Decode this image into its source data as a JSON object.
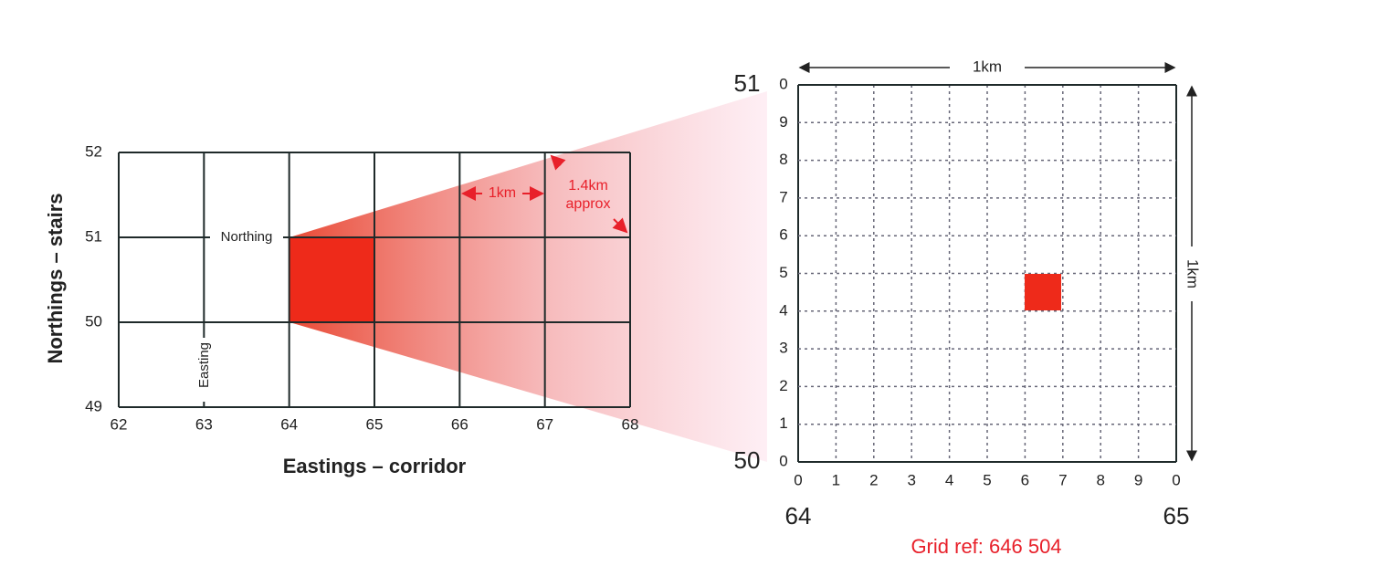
{
  "left_grid": {
    "y_axis_label": "Northings – stairs",
    "x_axis_label": "Eastings – corridor",
    "x_labels": [
      "62",
      "63",
      "64",
      "65",
      "66",
      "67",
      "68"
    ],
    "y_labels": [
      "52",
      "51",
      "50",
      "49"
    ],
    "northing_label": "Northing",
    "easting_label": "Easting",
    "square_size_label": "1km",
    "diagonal_label": [
      "1.4km",
      "approx"
    ]
  },
  "right_grid": {
    "top_northing": "51",
    "bottom_northing": "50",
    "left_easting": "64",
    "right_easting": "65",
    "x_labels": [
      "0",
      "1",
      "2",
      "3",
      "4",
      "5",
      "6",
      "7",
      "8",
      "9",
      "0"
    ],
    "y_labels": [
      "0",
      "9",
      "8",
      "7",
      "6",
      "5",
      "4",
      "3",
      "2",
      "1",
      "0"
    ],
    "width_label": "1km",
    "height_label": "1km",
    "grid_ref": "Grid ref: 646 504"
  }
}
